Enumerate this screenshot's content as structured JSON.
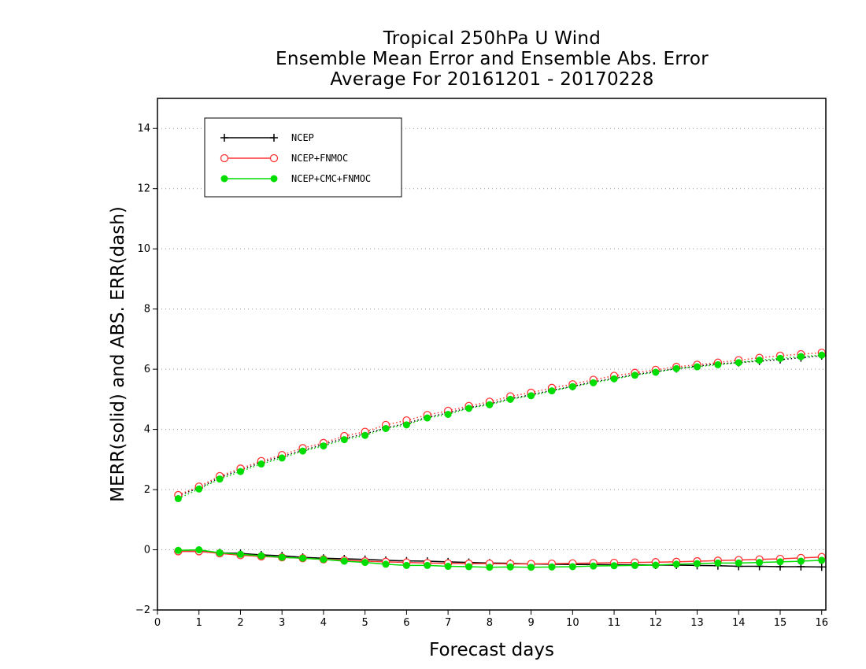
{
  "chart_data": {
    "type": "line",
    "title_lines": [
      "Tropical 250hPa U Wind",
      "Ensemble Mean Error and Ensemble Abs. Error",
      "Average For 20161201 - 20170228"
    ],
    "xlabel": "Forecast days",
    "ylabel": "MERR(solid) and ABS. ERR(dash)",
    "xlim": [
      0,
      16.1
    ],
    "ylim": [
      -2,
      15
    ],
    "xticks": [
      0,
      1,
      2,
      3,
      4,
      5,
      6,
      7,
      8,
      9,
      10,
      11,
      12,
      13,
      14,
      15,
      16
    ],
    "yticks": [
      -2,
      0,
      2,
      4,
      6,
      8,
      10,
      12,
      14
    ],
    "grid": "horizontal dotted",
    "legend_position": "top-left",
    "x": [
      0.5,
      1,
      1.5,
      2,
      2.5,
      3,
      3.5,
      4,
      4.5,
      5,
      5.5,
      6,
      6.5,
      7,
      7.5,
      8,
      8.5,
      9,
      9.5,
      10,
      10.5,
      11,
      11.5,
      12,
      12.5,
      13,
      13.5,
      14,
      14.5,
      15,
      15.5,
      16
    ],
    "series": [
      {
        "name": "NCEP",
        "color": "#000000",
        "marker": "plus",
        "mean_error": [
          -0.05,
          -0.05,
          -0.1,
          -0.12,
          -0.17,
          -0.2,
          -0.25,
          -0.28,
          -0.3,
          -0.32,
          -0.35,
          -0.37,
          -0.38,
          -0.4,
          -0.42,
          -0.44,
          -0.45,
          -0.47,
          -0.48,
          -0.49,
          -0.49,
          -0.5,
          -0.5,
          -0.51,
          -0.51,
          -0.52,
          -0.53,
          -0.55,
          -0.55,
          -0.56,
          -0.56,
          -0.57
        ],
        "abs_error": [
          1.8,
          2.05,
          2.4,
          2.65,
          2.9,
          3.1,
          3.3,
          3.5,
          3.7,
          3.85,
          4.05,
          4.2,
          4.4,
          4.55,
          4.72,
          4.85,
          5.02,
          5.15,
          5.3,
          5.43,
          5.58,
          5.7,
          5.82,
          5.92,
          6.02,
          6.1,
          6.18,
          6.22,
          6.27,
          6.32,
          6.38,
          6.45
        ]
      },
      {
        "name": "NCEP+FNMOC",
        "color": "#ff3333",
        "marker": "open-circle",
        "mean_error": [
          -0.05,
          -0.05,
          -0.12,
          -0.18,
          -0.22,
          -0.25,
          -0.28,
          -0.32,
          -0.35,
          -0.38,
          -0.4,
          -0.42,
          -0.44,
          -0.45,
          -0.46,
          -0.46,
          -0.47,
          -0.47,
          -0.46,
          -0.45,
          -0.44,
          -0.43,
          -0.42,
          -0.41,
          -0.4,
          -0.38,
          -0.36,
          -0.34,
          -0.32,
          -0.3,
          -0.27,
          -0.24
        ],
        "abs_error": [
          1.82,
          2.1,
          2.45,
          2.7,
          2.95,
          3.15,
          3.38,
          3.55,
          3.78,
          3.92,
          4.15,
          4.3,
          4.48,
          4.62,
          4.78,
          4.92,
          5.1,
          5.22,
          5.38,
          5.5,
          5.65,
          5.78,
          5.88,
          5.98,
          6.08,
          6.15,
          6.22,
          6.3,
          6.38,
          6.45,
          6.5,
          6.55
        ]
      },
      {
        "name": "NCEP+CMC+FNMOC",
        "color": "#00dd00",
        "marker": "filled-circle",
        "mean_error": [
          -0.02,
          0.0,
          -0.1,
          -0.15,
          -0.2,
          -0.25,
          -0.28,
          -0.32,
          -0.38,
          -0.42,
          -0.48,
          -0.52,
          -0.52,
          -0.55,
          -0.56,
          -0.58,
          -0.57,
          -0.58,
          -0.57,
          -0.56,
          -0.54,
          -0.53,
          -0.52,
          -0.51,
          -0.48,
          -0.46,
          -0.44,
          -0.44,
          -0.42,
          -0.4,
          -0.38,
          -0.35
        ],
        "abs_error": [
          1.7,
          2.02,
          2.35,
          2.6,
          2.85,
          3.05,
          3.28,
          3.45,
          3.66,
          3.8,
          4.03,
          4.15,
          4.38,
          4.5,
          4.7,
          4.82,
          5.0,
          5.12,
          5.28,
          5.42,
          5.55,
          5.68,
          5.8,
          5.9,
          6.02,
          6.08,
          6.15,
          6.22,
          6.3,
          6.36,
          6.42,
          6.47
        ]
      }
    ]
  }
}
